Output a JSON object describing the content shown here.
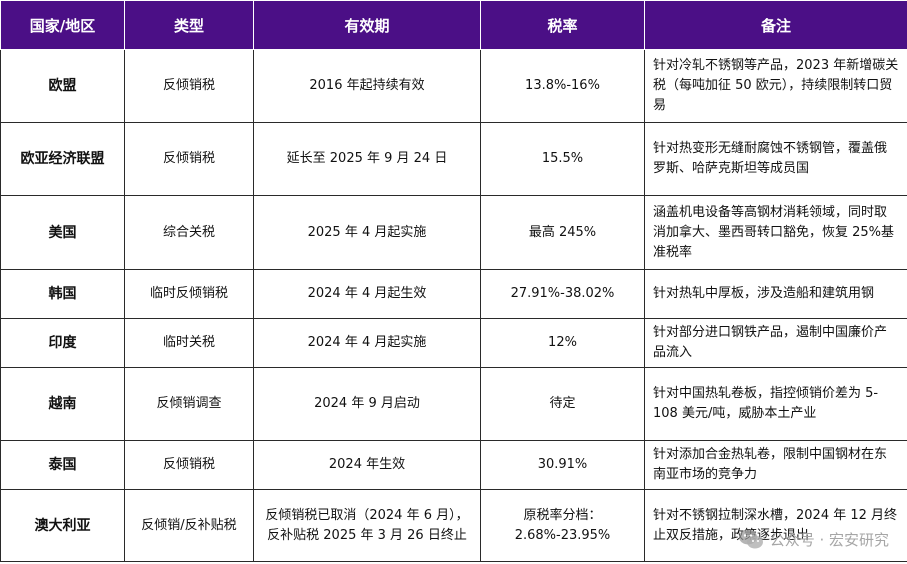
{
  "header": {
    "region": "国家/地区",
    "type": "类型",
    "period": "有效期",
    "rate": "税率",
    "note": "备注"
  },
  "rows": [
    {
      "region": "欧盟",
      "type": "反倾销税",
      "period": "2016 年起持续有效",
      "rate": "13.8%-16%",
      "note": "针对冷轧不锈钢等产品，2023 年新增碳关税（每吨加征 50 欧元），持续限制转口贸易"
    },
    {
      "region": "欧亚经济联盟",
      "type": "反倾销税",
      "period": "延长至 2025 年 9 月 24 日",
      "rate": "15.5%",
      "note": "针对热变形无缝耐腐蚀不锈钢管，覆盖俄罗斯、哈萨克斯坦等成员国"
    },
    {
      "region": "美国",
      "type": "综合关税",
      "period": "2025 年 4 月起实施",
      "rate": "最高 245%",
      "note": "涵盖机电设备等高钢材消耗领域，同时取消加拿大、墨西哥转口豁免，恢复 25%基准税率"
    },
    {
      "region": "韩国",
      "type": "临时反倾销税",
      "period": "2024 年 4 月起生效",
      "rate": "27.91%-38.02%",
      "note": "针对热轧中厚板，涉及造船和建筑用钢"
    },
    {
      "region": "印度",
      "type": "临时关税",
      "period": "2024 年 4 月起实施",
      "rate": "12%",
      "note": "针对部分进口钢铁产品，遏制中国廉价产品流入"
    },
    {
      "region": "越南",
      "type": "反倾销调查",
      "period": "2024 年 9 月启动",
      "rate": "待定",
      "note": "针对中国热轧卷板，指控倾销价差为 5-108 美元/吨，威胁本土产业"
    },
    {
      "region": "泰国",
      "type": "反倾销税",
      "period": "2024 年生效",
      "rate": "30.91%",
      "note": "针对添加合金热轧卷，限制中国钢材在东南亚市场的竞争力"
    },
    {
      "region": "澳大利亚",
      "type": "反倾销/反补贴税",
      "period": "反倾销税已取消（2024 年 6 月），反补贴税 2025 年 3 月 26 日终止",
      "rate": "原税率分档：2.68%-23.95%",
      "note": "针对不锈钢拉制深水槽，2024 年 12 月终止双反措施，政策逐步退出"
    }
  ],
  "watermark": {
    "text": "公众号 · 宏安研究",
    "icon": "wechat-icon"
  }
}
